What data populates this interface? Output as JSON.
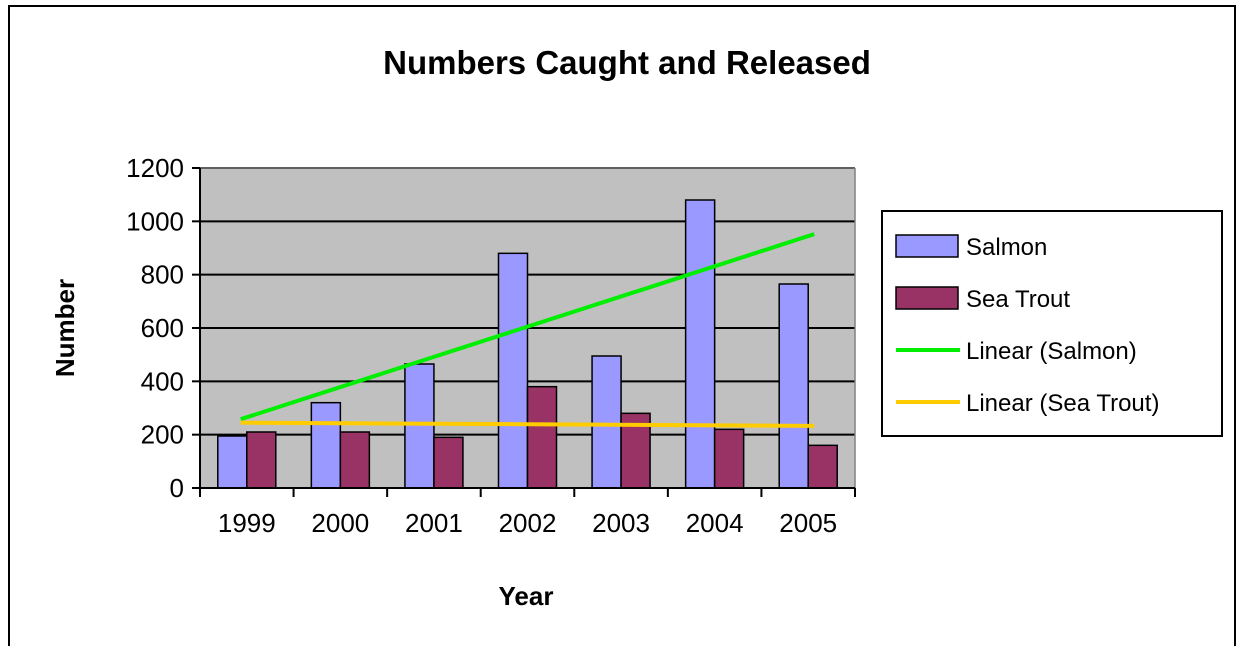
{
  "chart_data": {
    "type": "bar",
    "title": "Numbers Caught and Released",
    "xlabel": "Year",
    "ylabel": "Number",
    "categories": [
      "1999",
      "2000",
      "2001",
      "2002",
      "2003",
      "2004",
      "2005"
    ],
    "ylim": [
      0,
      1200
    ],
    "yticks": [
      0,
      200,
      400,
      600,
      800,
      1000,
      1200
    ],
    "grid": true,
    "legend_position": "right",
    "series": [
      {
        "name": "Salmon",
        "values": [
          195,
          320,
          465,
          880,
          495,
          1080,
          765
        ],
        "color": "#9999FF"
      },
      {
        "name": "Sea Trout",
        "values": [
          210,
          210,
          190,
          380,
          280,
          220,
          160
        ],
        "color": "#993366"
      }
    ],
    "trendlines": [
      {
        "name": "Linear (Salmon)",
        "type": "linear",
        "start": 258,
        "end": 952,
        "color": "#00EE00"
      },
      {
        "name": "Linear (Sea Trout)",
        "type": "linear",
        "start": 245,
        "end": 233,
        "color": "#FFCC00"
      }
    ],
    "legend": [
      "Salmon",
      "Sea Trout",
      "Linear (Salmon)",
      "Linear (Sea Trout)"
    ],
    "plot_background": "#C0C0C0"
  }
}
